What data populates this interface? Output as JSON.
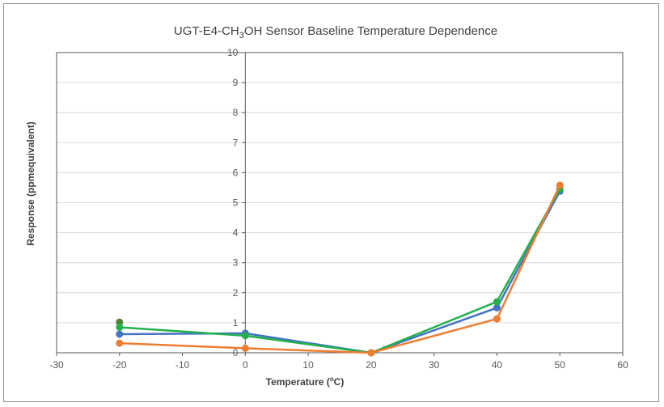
{
  "chart_data": {
    "type": "line",
    "title": {
      "prefix": "UGT-E4-CH",
      "subscript": "3",
      "suffix": "OH  Sensor Baseline Temperature  Dependence"
    },
    "xlabel": {
      "prefix": "Temperature (",
      "superscript": "o",
      "suffix": "C)"
    },
    "ylabel": "Response (ppmequivalent)",
    "xlim": [
      -30,
      60
    ],
    "ylim": [
      0,
      10
    ],
    "xticks": [
      -30,
      -20,
      -10,
      0,
      10,
      20,
      30,
      40,
      50,
      60
    ],
    "yticks": [
      0,
      1,
      2,
      3,
      4,
      5,
      6,
      7,
      8,
      9,
      10
    ],
    "grid": "horizontal",
    "legend": "none",
    "series": [
      {
        "color": "#4472C4",
        "points": [
          [
            -20,
            0.62
          ],
          [
            0,
            0.65
          ],
          [
            20,
            0.0
          ],
          [
            40,
            1.5
          ],
          [
            50,
            5.38
          ]
        ]
      },
      {
        "color": "#548235",
        "points": [
          [
            -20,
            1.02
          ]
        ]
      },
      {
        "color": "#22B14C",
        "points": [
          [
            -20,
            0.85
          ],
          [
            0,
            0.57
          ],
          [
            20,
            0.0
          ],
          [
            40,
            1.7
          ],
          [
            50,
            5.45
          ]
        ]
      },
      {
        "color": "#ED7D31",
        "points": [
          [
            -20,
            0.32
          ],
          [
            0,
            0.15
          ],
          [
            20,
            0.0
          ],
          [
            40,
            1.13
          ],
          [
            50,
            5.58
          ]
        ]
      }
    ]
  }
}
